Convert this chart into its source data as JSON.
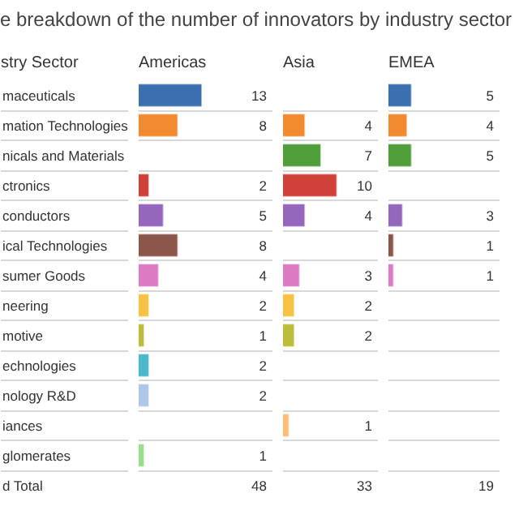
{
  "chart_data": [
    {
      "type": "bar",
      "orientation": "horizontal",
      "title": "e breakdown of the number of innovators by industry sector",
      "ylabel": "stry Sector",
      "subtitle": "Americas",
      "tick_labels": "y",
      "grid": "y",
      "data_labels": true,
      "xlim": [
        0,
        28
      ],
      "categories": [
        "maceuticals",
        "mation Technologies",
        "nicals and Materials",
        "ctronics",
        "conductors",
        "ical Technologies",
        "sumer Goods",
        "neering",
        "motive",
        "echnologies",
        "nology R&D",
        "iances",
        "glomerates"
      ],
      "values": [
        13,
        8,
        null,
        2,
        5,
        8,
        4,
        2,
        1,
        2,
        2,
        null,
        1
      ],
      "colors": [
        "#3b70b0",
        "#f28a30",
        "#4f9e3a",
        "#d0413a",
        "#9467bd",
        "#8c564b",
        "#dc7bc4",
        "#f7c244",
        "#bcbd3a",
        "#4bb8cc",
        "#aec7e8",
        "#ffbb78",
        "#98df8a"
      ],
      "annotations": [
        "d Total",
        "48"
      ]
    },
    {
      "type": "bar",
      "orientation": "horizontal",
      "subtitle": "Asia",
      "tick_labels": false,
      "grid": "y",
      "data_labels": true,
      "xlim": [
        0,
        18
      ],
      "values": [
        null,
        4,
        7,
        10,
        4,
        null,
        3,
        2,
        2,
        null,
        null,
        1,
        null
      ],
      "colors": [
        "#3b70b0",
        "#f28a30",
        "#4f9e3a",
        "#d0413a",
        "#9467bd",
        "#8c564b",
        "#dc7bc4",
        "#f7c244",
        "#bcbd3a",
        "#4bb8cc",
        "#aec7e8",
        "#ffbb78",
        "#98df8a"
      ],
      "annotations": [
        "33"
      ]
    },
    {
      "type": "bar",
      "orientation": "horizontal",
      "subtitle": "EMEA",
      "tick_labels": false,
      "grid": "y",
      "data_labels": true,
      "xlim": [
        0,
        25
      ],
      "values": [
        5,
        4,
        5,
        null,
        3,
        1,
        1,
        null,
        null,
        null,
        null,
        null,
        null
      ],
      "colors": [
        "#3b70b0",
        "#f28a30",
        "#4f9e3a",
        "#d0413a",
        "#9467bd",
        "#8c564b",
        "#dc7bc4",
        "#f7c244",
        "#bcbd3a",
        "#4bb8cc",
        "#aec7e8",
        "#ffbb78",
        "#98df8a"
      ],
      "annotations": [
        "19"
      ]
    }
  ]
}
